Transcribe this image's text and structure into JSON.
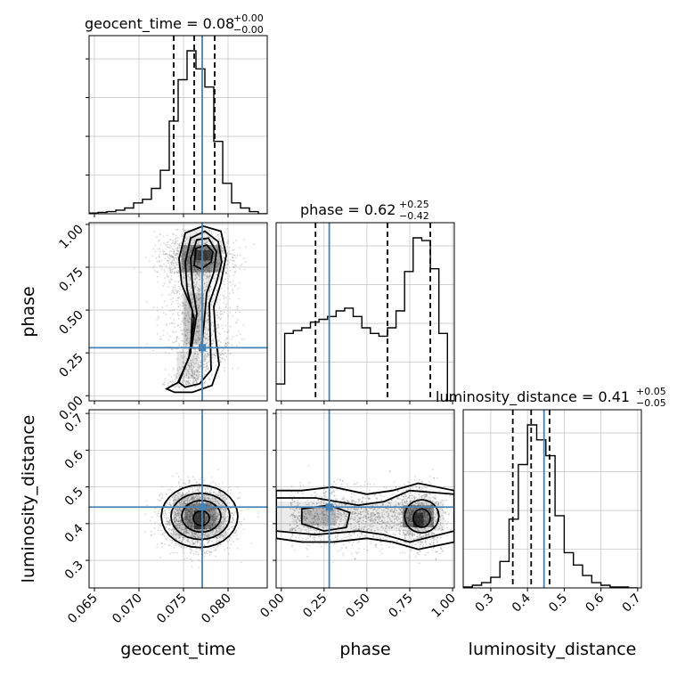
{
  "chart_data": {
    "type": "corner",
    "parameters": [
      "geocent_time",
      "phase",
      "luminosity_distance"
    ],
    "truths": {
      "geocent_time": 0.0771,
      "phase": 0.28,
      "luminosity_distance": 0.445
    },
    "ranges": {
      "geocent_time": [
        0.0644,
        0.0844
      ],
      "phase": [
        -0.03,
        1.01
      ],
      "luminosity_distance": [
        0.225,
        0.71
      ]
    },
    "ticks": {
      "geocent_time": [
        "0.065",
        "0.070",
        "0.075",
        "0.080"
      ],
      "phase": [
        "0.00",
        "0.25",
        "0.50",
        "0.75",
        "1.00"
      ],
      "luminosity_distance": [
        "0.3",
        "0.4",
        "0.5",
        "0.6",
        "0.7"
      ]
    },
    "titles": {
      "geocent_time": {
        "label": "geocent_time = 0.08",
        "plus": "+0.00",
        "minus": "−0.00"
      },
      "phase": {
        "label": "phase = 0.62",
        "plus": "+0.25",
        "minus": "−0.42"
      },
      "luminosity_distance": {
        "label": "luminosity_distance = 0.41",
        "plus": "+0.05",
        "minus": "−0.05"
      }
    },
    "axis_labels": {
      "geocent_time": "geocent_time",
      "phase": "phase",
      "luminosity_distance": "luminosity_distance"
    },
    "quantiles": {
      "geocent_time": [
        0.0739,
        0.0762,
        0.0785
      ],
      "phase": [
        0.2,
        0.62,
        0.87
      ],
      "luminosity_distance": [
        0.36,
        0.41,
        0.46
      ]
    },
    "hist_geocent_time": {
      "x": [
        0.0644,
        0.0654,
        0.0664,
        0.0674,
        0.0684,
        0.0694,
        0.0704,
        0.0714,
        0.0724,
        0.0734,
        0.0744,
        0.0754,
        0.0764,
        0.0774,
        0.0784,
        0.0794,
        0.0804,
        0.0814,
        0.0824,
        0.0834
      ],
      "y": [
        1,
        2,
        3,
        5,
        8,
        15,
        20,
        35,
        60,
        128,
        185,
        225,
        200,
        175,
        100,
        42,
        15,
        8,
        3,
        0
      ]
    },
    "hist_phase": {
      "x": [
        -0.03,
        0.02,
        0.07,
        0.12,
        0.17,
        0.22,
        0.27,
        0.32,
        0.37,
        0.42,
        0.47,
        0.52,
        0.57,
        0.62,
        0.67,
        0.72,
        0.77,
        0.82,
        0.87,
        0.92,
        0.97
      ],
      "y": [
        30,
        120,
        125,
        130,
        140,
        145,
        150,
        160,
        165,
        150,
        130,
        120,
        115,
        130,
        160,
        230,
        290,
        285,
        235,
        120,
        0
      ]
    },
    "hist_luminosity_distance": {
      "x": [
        0.225,
        0.25,
        0.275,
        0.3,
        0.325,
        0.35,
        0.375,
        0.4,
        0.425,
        0.45,
        0.475,
        0.5,
        0.525,
        0.55,
        0.575,
        0.6,
        0.625,
        0.65,
        0.675
      ],
      "y": [
        1,
        3,
        6,
        12,
        30,
        78,
        140,
        185,
        168,
        150,
        82,
        40,
        26,
        14,
        6,
        3,
        1,
        1,
        0
      ]
    },
    "grid": true,
    "truth_color": "#4682b4"
  }
}
